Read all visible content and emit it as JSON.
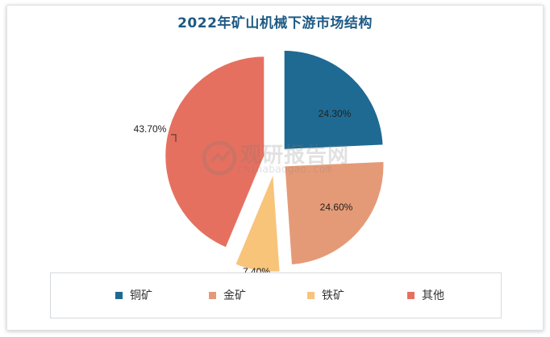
{
  "chart_data": {
    "type": "pie",
    "title": "2022年矿山机械下游市场结构",
    "slices": [
      {
        "label": "铜矿",
        "value": 24.3,
        "value_label": "24.30%",
        "color": "#1e6a93"
      },
      {
        "label": "金矿",
        "value": 24.6,
        "value_label": "24.60%",
        "color": "#e59a77"
      },
      {
        "label": "铁矿",
        "value": 7.4,
        "value_label": "7.40%",
        "color": "#f8c47a"
      },
      {
        "label": "其他",
        "value": 43.7,
        "value_label": "43.70%",
        "color": "#e67060"
      }
    ],
    "exploded": true,
    "legend_position": "bottom"
  },
  "watermark": {
    "cn": "观研报告网",
    "en": "chinabaogao.com"
  }
}
